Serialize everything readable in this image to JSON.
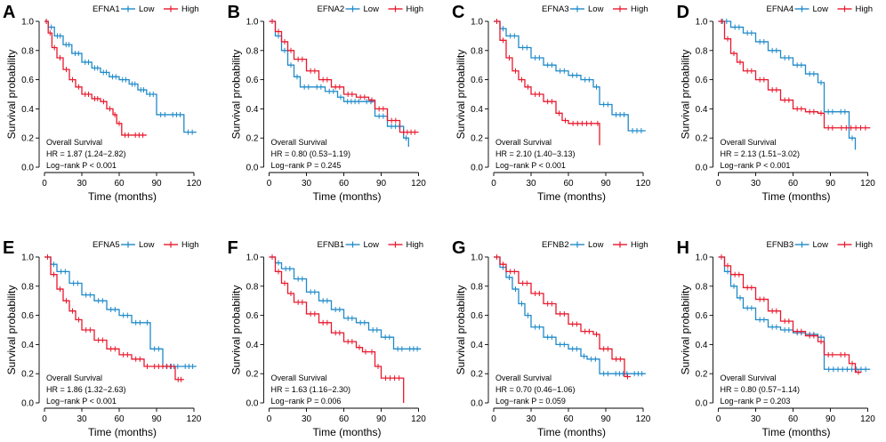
{
  "chart_data": [
    {
      "panel": "A",
      "type": "line",
      "legend_title": "EFNA1",
      "xlabel": "Time (months)",
      "ylabel": "Survival probability",
      "xlim": [
        0,
        125
      ],
      "ylim": [
        0,
        1
      ],
      "xticks": [
        0,
        30,
        60,
        90,
        120
      ],
      "yticks": [
        0,
        0.2,
        0.4,
        0.6,
        0.8,
        1
      ],
      "xtick_labels": [
        "0",
        "30",
        "60",
        "90",
        "120"
      ],
      "ytick_labels": [
        "0.0",
        "0.2",
        "0.4",
        "0.6",
        "0.8",
        "1.0"
      ],
      "annotation": [
        "Overall Survival",
        "HR = 1.87 (1.24−2.82)",
        "Log−rank P < 0.001"
      ],
      "series": [
        {
          "name": "Low",
          "color": "#1f8ac9",
          "x": [
            0,
            3,
            8,
            15,
            22,
            30,
            38,
            45,
            52,
            60,
            68,
            75,
            82,
            90,
            100,
            112,
            122
          ],
          "y": [
            1,
            0.96,
            0.9,
            0.84,
            0.78,
            0.72,
            0.68,
            0.65,
            0.62,
            0.6,
            0.57,
            0.53,
            0.5,
            0.36,
            0.36,
            0.24,
            0.24
          ]
        },
        {
          "name": "High",
          "color": "#e8192d",
          "x": [
            0,
            3,
            6,
            10,
            15,
            20,
            25,
            30,
            38,
            45,
            50,
            55,
            58,
            62,
            70,
            82
          ],
          "y": [
            1,
            0.92,
            0.82,
            0.75,
            0.67,
            0.6,
            0.55,
            0.5,
            0.47,
            0.45,
            0.4,
            0.36,
            0.3,
            0.22,
            0.22,
            0.22
          ]
        }
      ]
    },
    {
      "panel": "B",
      "type": "line",
      "legend_title": "EFNA2",
      "xlabel": "Time (months)",
      "ylabel": "Survival probability",
      "xlim": [
        0,
        125
      ],
      "ylim": [
        0,
        1
      ],
      "xticks": [
        0,
        30,
        60,
        90,
        120
      ],
      "yticks": [
        0,
        0.2,
        0.4,
        0.6,
        0.8,
        1
      ],
      "xtick_labels": [
        "0",
        "30",
        "60",
        "90",
        "120"
      ],
      "ytick_labels": [
        "0.0",
        "0.2",
        "0.4",
        "0.6",
        "0.8",
        "1.0"
      ],
      "annotation": [
        "Overall Survival",
        "HR = 0.80 (0.53−1.19)",
        "Log−rank P = 0.245"
      ],
      "series": [
        {
          "name": "Low",
          "color": "#1f8ac9",
          "x": [
            0,
            5,
            10,
            15,
            20,
            25,
            35,
            45,
            55,
            60,
            75,
            85,
            95,
            108,
            112
          ],
          "y": [
            1,
            0.9,
            0.8,
            0.7,
            0.62,
            0.55,
            0.55,
            0.52,
            0.48,
            0.45,
            0.45,
            0.35,
            0.28,
            0.2,
            0.14
          ]
        },
        {
          "name": "High",
          "color": "#e8192d",
          "x": [
            0,
            5,
            10,
            15,
            20,
            30,
            40,
            50,
            60,
            70,
            80,
            85,
            95,
            105,
            120
          ],
          "y": [
            1,
            0.93,
            0.86,
            0.8,
            0.74,
            0.66,
            0.6,
            0.55,
            0.5,
            0.48,
            0.46,
            0.4,
            0.32,
            0.24,
            0.24
          ]
        }
      ]
    },
    {
      "panel": "C",
      "type": "line",
      "legend_title": "EFNA3",
      "xlabel": "Time (months)",
      "ylabel": "Survival probability",
      "xlim": [
        0,
        125
      ],
      "ylim": [
        0,
        1
      ],
      "xticks": [
        0,
        30,
        60,
        90,
        120
      ],
      "yticks": [
        0,
        0.2,
        0.4,
        0.6,
        0.8,
        1
      ],
      "xtick_labels": [
        "0",
        "30",
        "60",
        "90",
        "120"
      ],
      "ytick_labels": [
        "0.0",
        "0.2",
        "0.4",
        "0.6",
        "0.8",
        "1.0"
      ],
      "annotation": [
        "Overall Survival",
        "HR = 2.10 (1.40−3.13)",
        "Log−rank P < 0.001"
      ],
      "series": [
        {
          "name": "Low",
          "color": "#1f8ac9",
          "x": [
            0,
            5,
            10,
            20,
            30,
            40,
            50,
            60,
            70,
            80,
            85,
            95,
            108,
            122
          ],
          "y": [
            1,
            0.95,
            0.9,
            0.82,
            0.75,
            0.7,
            0.66,
            0.63,
            0.6,
            0.55,
            0.43,
            0.36,
            0.25,
            0.25
          ]
        },
        {
          "name": "High",
          "color": "#e8192d",
          "x": [
            0,
            5,
            10,
            15,
            20,
            25,
            30,
            40,
            50,
            55,
            60,
            82,
            85
          ],
          "y": [
            1,
            0.87,
            0.75,
            0.66,
            0.6,
            0.55,
            0.5,
            0.45,
            0.37,
            0.32,
            0.3,
            0.3,
            0.15
          ]
        }
      ]
    },
    {
      "panel": "D",
      "type": "line",
      "legend_title": "EFNA4",
      "xlabel": "Time (months)",
      "ylabel": "Survival probability",
      "xlim": [
        0,
        125
      ],
      "ylim": [
        0,
        1
      ],
      "xticks": [
        0,
        30,
        60,
        90,
        120
      ],
      "yticks": [
        0,
        0.2,
        0.4,
        0.6,
        0.8,
        1
      ],
      "xtick_labels": [
        "0",
        "30",
        "60",
        "90",
        "120"
      ],
      "ytick_labels": [
        "0.0",
        "0.2",
        "0.4",
        "0.6",
        "0.8",
        "1.0"
      ],
      "annotation": [
        "Overall Survival",
        "HR = 2.13 (1.51−3.02)",
        "Log−rank P < 0.001"
      ],
      "series": [
        {
          "name": "Low",
          "color": "#1f8ac9",
          "x": [
            0,
            10,
            20,
            30,
            40,
            50,
            60,
            70,
            80,
            85,
            95,
            105,
            110
          ],
          "y": [
            1,
            0.96,
            0.92,
            0.86,
            0.8,
            0.75,
            0.7,
            0.64,
            0.58,
            0.38,
            0.38,
            0.2,
            0.12
          ]
        },
        {
          "name": "High",
          "color": "#e8192d",
          "x": [
            0,
            5,
            10,
            15,
            20,
            30,
            40,
            50,
            60,
            70,
            80,
            85,
            95,
            122
          ],
          "y": [
            1,
            0.88,
            0.78,
            0.72,
            0.66,
            0.6,
            0.53,
            0.46,
            0.4,
            0.38,
            0.37,
            0.27,
            0.27,
            0.27
          ]
        }
      ]
    },
    {
      "panel": "E",
      "type": "line",
      "legend_title": "EFNA5",
      "xlabel": "Time (months)",
      "ylabel": "Survival probability",
      "xlim": [
        0,
        125
      ],
      "ylim": [
        0,
        1
      ],
      "xticks": [
        0,
        30,
        60,
        90,
        120
      ],
      "yticks": [
        0,
        0.2,
        0.4,
        0.6,
        0.8,
        1
      ],
      "xtick_labels": [
        "0",
        "30",
        "60",
        "90",
        "120"
      ],
      "ytick_labels": [
        "0.0",
        "0.2",
        "0.4",
        "0.6",
        "0.8",
        "1.0"
      ],
      "annotation": [
        "Overall Survival",
        "HR = 1.86 (1.32−2.63)",
        "Log−rank P < 0.001"
      ],
      "series": [
        {
          "name": "Low",
          "color": "#1f8ac9",
          "x": [
            0,
            5,
            10,
            20,
            30,
            40,
            50,
            60,
            70,
            80,
            85,
            95,
            110,
            122
          ],
          "y": [
            1,
            0.95,
            0.9,
            0.82,
            0.74,
            0.7,
            0.64,
            0.6,
            0.55,
            0.55,
            0.37,
            0.25,
            0.25,
            0.25
          ]
        },
        {
          "name": "High",
          "color": "#e8192d",
          "x": [
            0,
            5,
            10,
            15,
            20,
            25,
            30,
            40,
            50,
            60,
            70,
            80,
            85,
            105,
            112
          ],
          "y": [
            1,
            0.88,
            0.78,
            0.7,
            0.63,
            0.57,
            0.5,
            0.43,
            0.37,
            0.33,
            0.3,
            0.25,
            0.25,
            0.16,
            0.16
          ]
        }
      ]
    },
    {
      "panel": "F",
      "type": "line",
      "legend_title": "EFNB1",
      "xlabel": "Time (months)",
      "ylabel": "Survival probability",
      "xlim": [
        0,
        125
      ],
      "ylim": [
        0,
        1
      ],
      "xticks": [
        0,
        30,
        60,
        90,
        120
      ],
      "yticks": [
        0,
        0.2,
        0.4,
        0.6,
        0.8,
        1
      ],
      "xtick_labels": [
        "0",
        "30",
        "60",
        "90",
        "120"
      ],
      "ytick_labels": [
        "0.0",
        "0.2",
        "0.4",
        "0.6",
        "0.8",
        "1.0"
      ],
      "annotation": [
        "Overall Survival",
        "HR = 1.63 (1.16−2.30)",
        "Log−rank P = 0.006"
      ],
      "series": [
        {
          "name": "Low",
          "color": "#1f8ac9",
          "x": [
            0,
            5,
            10,
            20,
            30,
            40,
            50,
            60,
            70,
            80,
            90,
            100,
            110,
            122
          ],
          "y": [
            1,
            0.96,
            0.92,
            0.85,
            0.76,
            0.7,
            0.64,
            0.58,
            0.55,
            0.5,
            0.45,
            0.37,
            0.37,
            0.37
          ]
        },
        {
          "name": "High",
          "color": "#e8192d",
          "x": [
            0,
            5,
            10,
            15,
            20,
            30,
            40,
            50,
            60,
            70,
            75,
            80,
            85,
            90,
            108
          ],
          "y": [
            1,
            0.9,
            0.82,
            0.75,
            0.69,
            0.61,
            0.55,
            0.48,
            0.42,
            0.38,
            0.35,
            0.35,
            0.25,
            0.17,
            0.0
          ]
        }
      ]
    },
    {
      "panel": "G",
      "type": "line",
      "legend_title": "EFNB2",
      "xlabel": "Time (months)",
      "ylabel": "Survival probability",
      "xlim": [
        0,
        125
      ],
      "ylim": [
        0,
        1
      ],
      "xticks": [
        0,
        30,
        60,
        90,
        120
      ],
      "yticks": [
        0,
        0.2,
        0.4,
        0.6,
        0.8,
        1
      ],
      "xtick_labels": [
        "0",
        "30",
        "60",
        "90",
        "120"
      ],
      "ytick_labels": [
        "0.0",
        "0.2",
        "0.4",
        "0.6",
        "0.8",
        "1.0"
      ],
      "annotation": [
        "Overall Survival",
        "HR = 0.70 (0.46−1.06)",
        "Log−rank P = 0.059"
      ],
      "series": [
        {
          "name": "Low",
          "color": "#1f8ac9",
          "x": [
            0,
            5,
            10,
            15,
            20,
            25,
            30,
            40,
            50,
            60,
            70,
            75,
            85,
            95,
            110,
            122
          ],
          "y": [
            1,
            0.93,
            0.86,
            0.78,
            0.68,
            0.6,
            0.52,
            0.45,
            0.4,
            0.37,
            0.32,
            0.3,
            0.2,
            0.2,
            0.2,
            0.2
          ]
        },
        {
          "name": "High",
          "color": "#e8192d",
          "x": [
            0,
            5,
            10,
            20,
            30,
            40,
            50,
            60,
            70,
            80,
            85,
            95,
            105,
            110
          ],
          "y": [
            1,
            0.95,
            0.9,
            0.82,
            0.75,
            0.68,
            0.61,
            0.54,
            0.49,
            0.47,
            0.37,
            0.3,
            0.18,
            0.18
          ]
        }
      ]
    },
    {
      "panel": "H",
      "type": "line",
      "legend_title": "EFNB3",
      "xlabel": "Time (months)",
      "ylabel": "Survival probability",
      "xlim": [
        0,
        125
      ],
      "ylim": [
        0,
        1
      ],
      "xticks": [
        0,
        30,
        60,
        90,
        120
      ],
      "yticks": [
        0,
        0.2,
        0.4,
        0.6,
        0.8,
        1
      ],
      "xtick_labels": [
        "0",
        "30",
        "60",
        "90",
        "120"
      ],
      "ytick_labels": [
        "0.0",
        "0.2",
        "0.4",
        "0.6",
        "0.8",
        "1.0"
      ],
      "annotation": [
        "Overall Survival",
        "HR = 0.80 (0.57−1.14)",
        "Log−rank P = 0.203"
      ],
      "series": [
        {
          "name": "Low",
          "color": "#1f8ac9",
          "x": [
            0,
            5,
            10,
            15,
            20,
            30,
            40,
            50,
            60,
            70,
            80,
            85,
            122
          ],
          "y": [
            1,
            0.9,
            0.8,
            0.72,
            0.65,
            0.57,
            0.52,
            0.5,
            0.48,
            0.47,
            0.45,
            0.23,
            0.23
          ]
        },
        {
          "name": "High",
          "color": "#e8192d",
          "x": [
            0,
            5,
            10,
            20,
            30,
            40,
            50,
            60,
            70,
            80,
            85,
            95,
            105,
            110,
            115
          ],
          "y": [
            1,
            0.94,
            0.88,
            0.79,
            0.71,
            0.63,
            0.56,
            0.49,
            0.46,
            0.42,
            0.33,
            0.33,
            0.27,
            0.21,
            0.21
          ]
        }
      ]
    }
  ]
}
